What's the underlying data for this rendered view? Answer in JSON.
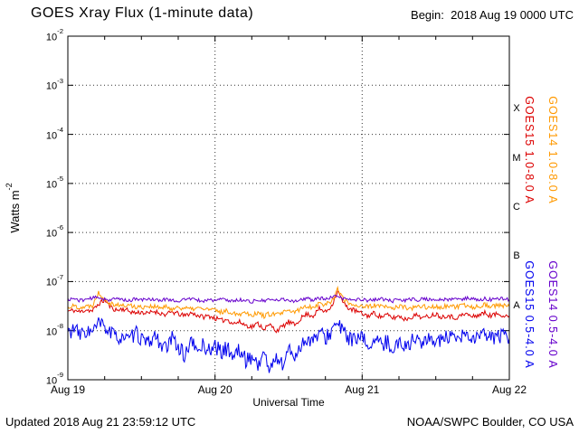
{
  "begin_label": "Begin:  2018 Aug 19 0000 UTC",
  "footer": {
    "updated": "Updated 2018 Aug 21 23:59:12 UTC",
    "source": "NOAA/SWPC Boulder, CO USA"
  },
  "chart_data": {
    "type": "line",
    "title": "GOES Xray Flux (1-minute data)",
    "xlabel": "Universal Time",
    "ylabel_base": "Watts m",
    "ylabel_exp": "-2",
    "x_tick_labels": [
      "Aug 19",
      "Aug 20",
      "Aug 21",
      "Aug 22"
    ],
    "y_tick_exponents": [
      -2,
      -3,
      -4,
      -5,
      -6,
      -7,
      -8,
      -9
    ],
    "ylog": true,
    "ylim": [
      1e-09,
      0.01
    ],
    "xlim_hours": [
      0,
      72
    ],
    "x_step_hours": 1,
    "grid": "dotted horizontal lines at each decade, dotted vertical lines at day boundaries",
    "legend_position": "right edge, rotated 90deg",
    "flare_classes": [
      {
        "label": "X",
        "center_exp": -3.5
      },
      {
        "label": "M",
        "center_exp": -4.5
      },
      {
        "label": "C",
        "center_exp": -5.5
      },
      {
        "label": "B",
        "center_exp": -6.5
      },
      {
        "label": "A",
        "center_exp": -7.5
      }
    ],
    "scale": 1e-08,
    "series": [
      {
        "name": "GOES15 1.0-8.0 A",
        "color": "#dc0000",
        "seed": 11,
        "noise": 0.05,
        "values": [
          2.5,
          2.6,
          2.4,
          2.7,
          2.5,
          3.5,
          4.2,
          3.0,
          2.6,
          2.8,
          2.5,
          2.3,
          2.4,
          2.2,
          2.5,
          2.3,
          2.1,
          2.4,
          2.2,
          2.0,
          2.3,
          2.1,
          1.9,
          2.0,
          1.8,
          1.6,
          1.7,
          1.4,
          1.5,
          1.3,
          1.2,
          1.4,
          1.1,
          1.3,
          1.0,
          1.2,
          1.5,
          1.3,
          1.8,
          2.2,
          2.0,
          2.8,
          2.4,
          3.2,
          6.5,
          3.5,
          2.8,
          2.5,
          2.2,
          2.0,
          2.3,
          1.9,
          2.1,
          1.8,
          2.0,
          1.7,
          1.9,
          2.1,
          1.8,
          2.0,
          2.2,
          1.9,
          2.1,
          1.8,
          2.0,
          2.2,
          1.9,
          2.1,
          2.3,
          2.0,
          2.2,
          2.1,
          2.0
        ]
      },
      {
        "name": "GOES14 1.0-8.0 A",
        "color": "#ff9900",
        "seed": 22,
        "noise": 0.05,
        "values": [
          3.0,
          3.2,
          3.0,
          3.1,
          3.3,
          6.0,
          4.5,
          3.6,
          3.4,
          3.2,
          3.3,
          3.1,
          3.0,
          3.2,
          3.1,
          2.9,
          3.0,
          2.8,
          3.0,
          2.9,
          2.7,
          2.9,
          2.8,
          2.7,
          2.6,
          2.4,
          2.5,
          2.3,
          2.2,
          2.4,
          2.1,
          2.3,
          2.0,
          2.2,
          2.1,
          2.3,
          2.5,
          2.4,
          2.8,
          3.2,
          3.0,
          3.6,
          3.4,
          4.0,
          7.0,
          4.2,
          3.6,
          3.3,
          3.2,
          3.0,
          3.3,
          3.1,
          3.0,
          2.9,
          3.1,
          3.0,
          2.8,
          3.0,
          3.2,
          2.9,
          3.1,
          3.0,
          3.2,
          3.0,
          3.1,
          3.3,
          3.0,
          3.2,
          3.4,
          3.1,
          3.3,
          3.2,
          3.1
        ]
      },
      {
        "name": "GOES15 0.5-4.0 A",
        "color": "#0000ee",
        "seed": 33,
        "noise": 0.16,
        "values": [
          0.9,
          1.1,
          0.8,
          1.0,
          0.9,
          1.4,
          1.2,
          0.9,
          0.7,
          0.8,
          0.6,
          0.9,
          0.7,
          0.5,
          0.8,
          0.6,
          0.4,
          0.7,
          0.5,
          0.3,
          0.6,
          0.4,
          0.5,
          0.4,
          0.5,
          0.35,
          0.45,
          0.3,
          0.4,
          0.25,
          0.3,
          0.2,
          0.35,
          0.15,
          0.3,
          0.2,
          0.4,
          0.3,
          0.5,
          0.7,
          0.6,
          0.9,
          0.7,
          1.0,
          1.4,
          0.9,
          0.7,
          0.6,
          0.7,
          0.5,
          0.65,
          0.5,
          0.6,
          0.45,
          0.55,
          0.5,
          0.6,
          0.7,
          0.55,
          0.65,
          0.7,
          0.6,
          0.75,
          0.6,
          0.7,
          0.8,
          0.65,
          0.75,
          0.8,
          0.7,
          0.8,
          0.75,
          0.7
        ]
      },
      {
        "name": "GOES14 0.5-4.0 A",
        "color": "#6600cc",
        "seed": 44,
        "noise": 0.035,
        "values": [
          4.3,
          4.5,
          4.1,
          4.4,
          4.6,
          4.8,
          4.4,
          4.2,
          4.5,
          4.3,
          4.1,
          4.4,
          4.2,
          4.5,
          4.3,
          4.1,
          4.4,
          4.2,
          4.0,
          4.3,
          4.5,
          4.2,
          4.0,
          4.3,
          4.1,
          4.4,
          4.2,
          4.0,
          4.3,
          4.1,
          3.9,
          4.2,
          4.0,
          4.3,
          4.1,
          4.4,
          4.2,
          4.0,
          4.3,
          4.5,
          4.2,
          4.6,
          4.4,
          4.7,
          5.0,
          4.5,
          4.3,
          4.2,
          4.4,
          4.1,
          4.3,
          4.5,
          4.2,
          4.0,
          4.3,
          4.1,
          4.4,
          4.2,
          4.5,
          4.3,
          4.1,
          4.4,
          4.2,
          4.5,
          4.3,
          4.6,
          4.4,
          4.2,
          4.5,
          4.3,
          4.6,
          4.4,
          4.3
        ]
      }
    ]
  }
}
